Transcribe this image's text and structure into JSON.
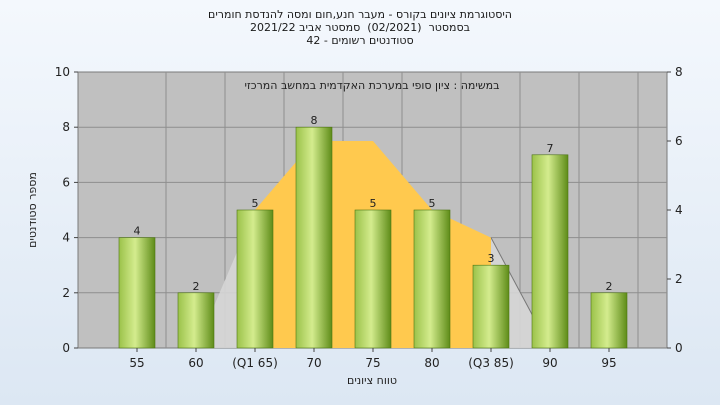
{
  "titles": [
    "היסטוגרמת ציונים בקורס - מעבר חנע,חום ומסה להנדסת חומרים",
    "בסמסטר  (02/2021)  סמסטר אביב 2021/22",
    "סטודנטים רשומים - 42"
  ],
  "chart_data": {
    "type": "bar",
    "title": "היסטוגרמת ציונים בקורס - מעבר חנע,חום ומסה להנדסת חומרים",
    "annotation": "במשימה : ציון סופי במערכת האקדמית במחשב המרכזי",
    "categories": [
      "55",
      "60",
      "(Q1 65)",
      "70",
      "75",
      "80",
      "(Q3 85)",
      "90",
      "95"
    ],
    "values": [
      4,
      2,
      5,
      8,
      5,
      5,
      3,
      7,
      2
    ],
    "xlabel": "טווח ציונים",
    "ylabel": "מספר סטודנטים",
    "ylim": [
      0,
      10
    ],
    "y_ticks": [
      0,
      2,
      4,
      6,
      8,
      10
    ],
    "y2lim": [
      0,
      8
    ],
    "y2_ticks": [
      0,
      2,
      4,
      6,
      8
    ],
    "grid": true,
    "iqr_band": {
      "from": "(Q1 65)",
      "to": "(Q3 85)",
      "values": [
        5,
        7.5,
        7.5,
        5,
        4
      ]
    },
    "colors": {
      "plot_bg": "#c0c0c0",
      "bar_light": "#d2ea8c",
      "bar_dark": "#6b9a1e",
      "band": "#ffc94e",
      "outer_area": "#d6d6d6"
    }
  }
}
